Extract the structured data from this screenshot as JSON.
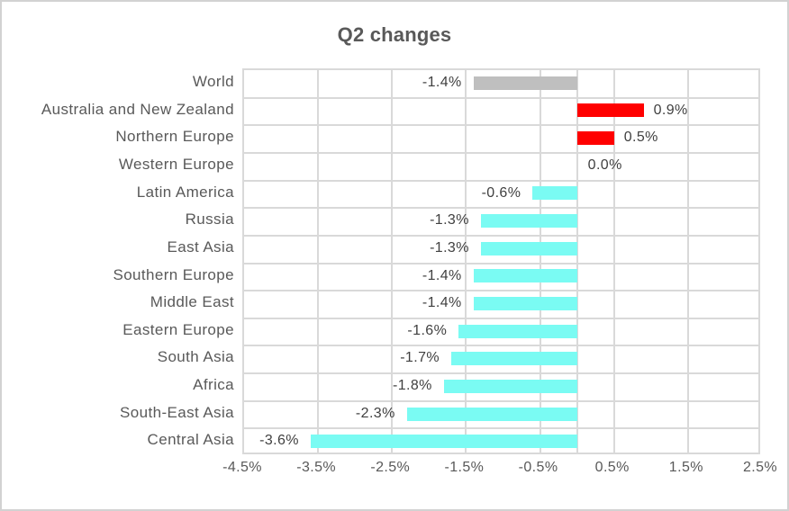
{
  "window": {
    "background": "#ffffff",
    "border_color": "#d2d2d2"
  },
  "chart_data": {
    "type": "bar",
    "orientation": "horizontal",
    "title": "Q2 changes",
    "categories": [
      "World",
      "Australia and New Zealand",
      "Northern Europe",
      "Western Europe",
      "Latin America",
      "Russia",
      "East Asia",
      "Southern Europe",
      "Middle East",
      "Eastern Europe",
      "South Asia",
      "Africa",
      "South-East Asia",
      "Central Asia"
    ],
    "values": [
      -1.4,
      0.9,
      0.5,
      0.0,
      -0.6,
      -1.3,
      -1.3,
      -1.4,
      -1.4,
      -1.6,
      -1.7,
      -1.8,
      -2.3,
      -3.6
    ],
    "data_labels": [
      "-1.4%",
      "0.9%",
      "0.5%",
      "0.0%",
      "-0.6%",
      "-1.3%",
      "-1.3%",
      "-1.4%",
      "-1.4%",
      "-1.6%",
      "-1.7%",
      "-1.8%",
      "-2.3%",
      "-3.6%"
    ],
    "bar_colors": [
      "#bfbfbf",
      "#ff0000",
      "#ff0000",
      null,
      "#7afbf3",
      "#7afbf3",
      "#7afbf3",
      "#7afbf3",
      "#7afbf3",
      "#7afbf3",
      "#7afbf3",
      "#7afbf3",
      "#7afbf3",
      "#7afbf3"
    ],
    "xlabel": "",
    "ylabel": "",
    "xlim": [
      -4.5,
      2.5
    ],
    "x_ticks": [
      -4.5,
      -3.5,
      -2.5,
      -1.5,
      -0.5,
      0.5,
      1.5,
      2.5
    ],
    "x_tick_labels": [
      "-4.5%",
      "-3.5%",
      "-2.5%",
      "-1.5%",
      "-0.5%",
      "0.5%",
      "1.5%",
      "2.5%"
    ],
    "grid": true,
    "zero_axis_line": true,
    "legend": "none",
    "colors": {
      "world_bar": "#bfbfbf",
      "positive_bar": "#ff0000",
      "negative_bar": "#7afbf3",
      "gridline": "#d9d9d9",
      "title_text": "#595959",
      "axis_text": "#595959",
      "data_label_text": "#404040"
    }
  }
}
